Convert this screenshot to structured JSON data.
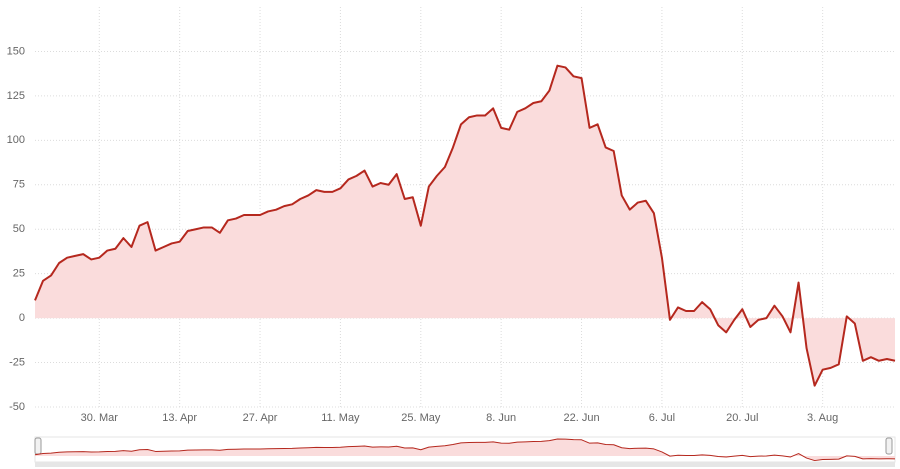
{
  "chart_data": {
    "type": "area",
    "categories": [
      "18. Mar",
      "19. Mar",
      "20. Mar",
      "23. Mar",
      "24. Mar",
      "25. Mar",
      "26. Mar",
      "27. Mar",
      "30. Mar",
      "31. Mar",
      "1. Apr",
      "2. Apr",
      "3. Apr",
      "6. Apr",
      "7. Apr",
      "8. Apr",
      "9. Apr",
      "10. Apr",
      "13. Apr",
      "14. Apr",
      "15. Apr",
      "16. Apr",
      "17. Apr",
      "20. Apr",
      "21. Apr",
      "22. Apr",
      "23. Apr",
      "24. Apr",
      "27. Apr",
      "28. Apr",
      "29. Apr",
      "30. Apr",
      "1. May",
      "4. May",
      "5. May",
      "6. May",
      "7. May",
      "8. May",
      "11. May",
      "12. May",
      "13. May",
      "14. May",
      "15. May",
      "18. May",
      "19. May",
      "20. May",
      "21. May",
      "22. May",
      "25. May",
      "26. May",
      "27. May",
      "28. May",
      "29. May",
      "1. Jun",
      "2. Jun",
      "3. Jun",
      "4. Jun",
      "5. Jun",
      "8. Jun",
      "9. Jun",
      "10. Jun",
      "11. Jun",
      "12. Jun",
      "15. Jun",
      "16. Jun",
      "17. Jun",
      "18. Jun",
      "19. Jun",
      "22. Jun",
      "23. Jun",
      "24. Jun",
      "25. Jun",
      "26. Jun",
      "29. Jun",
      "30. Jun",
      "1. Jul",
      "2. Jul",
      "3. Jul",
      "6. Jul",
      "7. Jul",
      "8. Jul",
      "9. Jul",
      "10. Jul",
      "13. Jul",
      "14. Jul",
      "15. Jul",
      "16. Jul",
      "17. Jul",
      "20. Jul",
      "21. Jul",
      "22. Jul",
      "23. Jul",
      "24. Jul",
      "27. Jul",
      "28. Jul",
      "29. Jul",
      "30. Jul",
      "31. Jul",
      "3. Aug",
      "4. Aug",
      "5. Aug",
      "6. Aug",
      "7. Aug",
      "10. Aug",
      "11. Aug",
      "12. Aug",
      "13. Aug",
      "14. Aug"
    ],
    "values": [
      10,
      21,
      24,
      31,
      34,
      35,
      36,
      33,
      34,
      38,
      39,
      45,
      40,
      52,
      54,
      38,
      40,
      42,
      43,
      49,
      50,
      51,
      51,
      48,
      55,
      56,
      58,
      58,
      58,
      60,
      61,
      63,
      64,
      67,
      69,
      72,
      71,
      71,
      73,
      78,
      80,
      83,
      74,
      76,
      75,
      81,
      67,
      68,
      52,
      74,
      80,
      85,
      96,
      109,
      113,
      114,
      114,
      118,
      107,
      106,
      116,
      118,
      121,
      122,
      128,
      142,
      141,
      136,
      135,
      107,
      109,
      96,
      94,
      69,
      61,
      65,
      66,
      59,
      34,
      -1,
      6,
      4,
      4,
      9,
      5,
      -4,
      -8,
      -1,
      5,
      -5,
      -1,
      0,
      7,
      1,
      -8,
      20,
      -17,
      -38,
      -29,
      -28,
      -26,
      1,
      -3,
      -24,
      -22,
      -24,
      -23,
      -24
    ],
    "color": "#b5281e",
    "fill": "#fadcdc",
    "ylim": [
      -50,
      175
    ],
    "yticks": [
      -50,
      -25,
      0,
      25,
      50,
      75,
      100,
      125,
      150
    ],
    "xticks": [
      "30. Mar",
      "13. Apr",
      "27. Apr",
      "11. May",
      "25. May",
      "8. Jun",
      "22. Jun",
      "6. Jul",
      "20. Jul",
      "3. Aug"
    ],
    "grid": true
  }
}
